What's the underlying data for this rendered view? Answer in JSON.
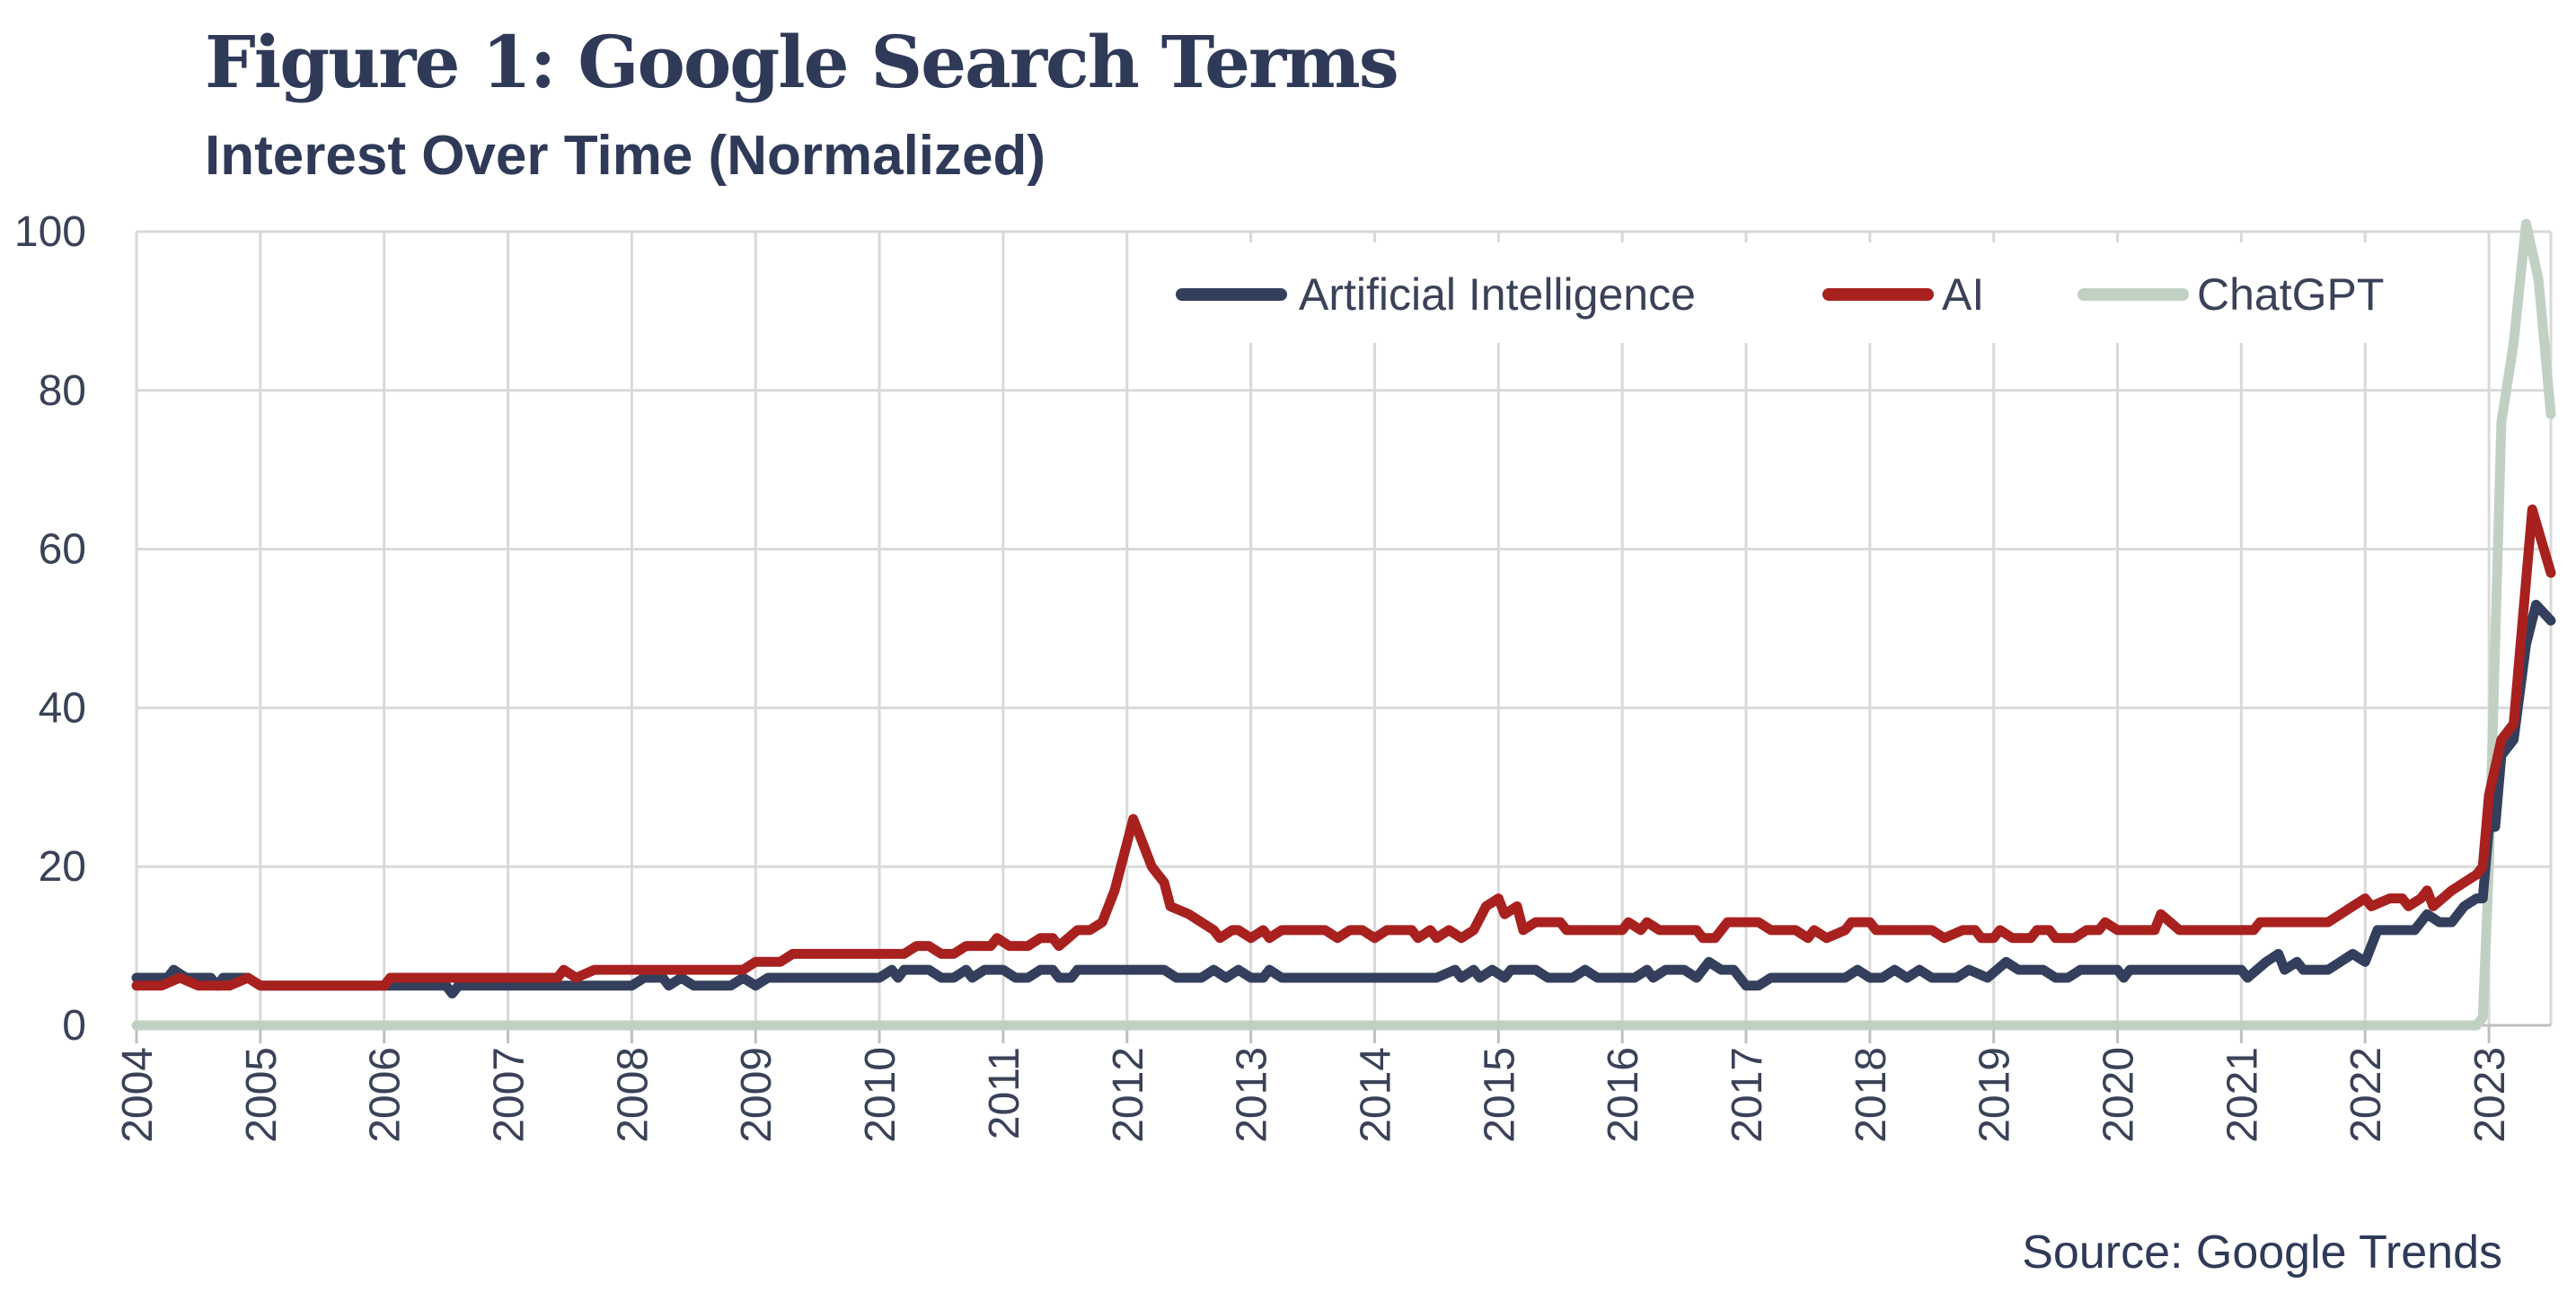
{
  "title": "Figure 1: Google Search Terms",
  "subtitle": "Interest Over Time (Normalized)",
  "source": "Source: Google Trends",
  "chart_data": {
    "type": "line",
    "title": "Figure 1: Google Search Terms",
    "subtitle": "Interest Over Time (Normalized)",
    "xlabel": "",
    "ylabel": "",
    "xlim": [
      2004,
      2023.5
    ],
    "ylim": [
      0,
      100
    ],
    "grid": true,
    "legend_position": "top-right",
    "x_ticks": [
      "2004",
      "2005",
      "2006",
      "2007",
      "2008",
      "2009",
      "2010",
      "2011",
      "2012",
      "2013",
      "2014",
      "2015",
      "2016",
      "2017",
      "2018",
      "2019",
      "2020",
      "2021",
      "2022",
      "2023"
    ],
    "y_ticks": [
      0,
      20,
      40,
      60,
      80,
      100
    ],
    "series": [
      {
        "name": "Artificial Intelligence",
        "color": "#333f5c",
        "points": [
          [
            2004,
            6
          ],
          [
            2004.25,
            6
          ],
          [
            2004.3,
            7
          ],
          [
            2004.4,
            6
          ],
          [
            2004.6,
            6
          ],
          [
            2004.65,
            5
          ],
          [
            2004.7,
            6
          ],
          [
            2004.9,
            6
          ],
          [
            2005,
            5
          ],
          [
            2005.5,
            5
          ],
          [
            2006,
            5
          ],
          [
            2006.5,
            5
          ],
          [
            2006.55,
            4
          ],
          [
            2006.6,
            5
          ],
          [
            2007,
            5
          ],
          [
            2007.5,
            5
          ],
          [
            2008,
            5
          ],
          [
            2008.1,
            6
          ],
          [
            2008.25,
            6
          ],
          [
            2008.3,
            5
          ],
          [
            2008.4,
            6
          ],
          [
            2008.5,
            5
          ],
          [
            2008.8,
            5
          ],
          [
            2008.9,
            6
          ],
          [
            2009,
            5
          ],
          [
            2009.1,
            6
          ],
          [
            2009.5,
            6
          ],
          [
            2010,
            6
          ],
          [
            2010.1,
            7
          ],
          [
            2010.15,
            6
          ],
          [
            2010.2,
            7
          ],
          [
            2010.4,
            7
          ],
          [
            2010.5,
            6
          ],
          [
            2010.6,
            6
          ],
          [
            2010.7,
            7
          ],
          [
            2010.75,
            6
          ],
          [
            2010.85,
            7
          ],
          [
            2011,
            7
          ],
          [
            2011.1,
            6
          ],
          [
            2011.2,
            6
          ],
          [
            2011.3,
            7
          ],
          [
            2011.4,
            7
          ],
          [
            2011.45,
            6
          ],
          [
            2011.55,
            6
          ],
          [
            2011.6,
            7
          ],
          [
            2011.8,
            7
          ],
          [
            2012,
            7
          ],
          [
            2012.3,
            7
          ],
          [
            2012.4,
            6
          ],
          [
            2012.6,
            6
          ],
          [
            2012.7,
            7
          ],
          [
            2012.8,
            6
          ],
          [
            2012.9,
            7
          ],
          [
            2013,
            6
          ],
          [
            2013.1,
            6
          ],
          [
            2013.15,
            7
          ],
          [
            2013.25,
            6
          ],
          [
            2013.5,
            6
          ],
          [
            2014,
            6
          ],
          [
            2014.5,
            6
          ],
          [
            2014.65,
            7
          ],
          [
            2014.7,
            6
          ],
          [
            2014.8,
            7
          ],
          [
            2014.85,
            6
          ],
          [
            2014.95,
            7
          ],
          [
            2015.05,
            6
          ],
          [
            2015.1,
            7
          ],
          [
            2015.3,
            7
          ],
          [
            2015.4,
            6
          ],
          [
            2015.6,
            6
          ],
          [
            2015.7,
            7
          ],
          [
            2015.8,
            6
          ],
          [
            2016,
            6
          ],
          [
            2016.1,
            6
          ],
          [
            2016.2,
            7
          ],
          [
            2016.25,
            6
          ],
          [
            2016.35,
            7
          ],
          [
            2016.5,
            7
          ],
          [
            2016.6,
            6
          ],
          [
            2016.7,
            8
          ],
          [
            2016.8,
            7
          ],
          [
            2016.9,
            7
          ],
          [
            2017,
            5
          ],
          [
            2017.1,
            5
          ],
          [
            2017.2,
            6
          ],
          [
            2017.5,
            6
          ],
          [
            2017.8,
            6
          ],
          [
            2017.9,
            7
          ],
          [
            2018,
            6
          ],
          [
            2018.1,
            6
          ],
          [
            2018.2,
            7
          ],
          [
            2018.3,
            6
          ],
          [
            2018.4,
            7
          ],
          [
            2018.5,
            6
          ],
          [
            2018.7,
            6
          ],
          [
            2018.8,
            7
          ],
          [
            2018.95,
            6
          ],
          [
            2019.1,
            8
          ],
          [
            2019.2,
            7
          ],
          [
            2019.4,
            7
          ],
          [
            2019.5,
            6
          ],
          [
            2019.6,
            6
          ],
          [
            2019.7,
            7
          ],
          [
            2019.8,
            7
          ],
          [
            2020,
            7
          ],
          [
            2020.05,
            6
          ],
          [
            2020.1,
            7
          ],
          [
            2020.5,
            7
          ],
          [
            2021,
            7
          ],
          [
            2021.05,
            6
          ],
          [
            2021.2,
            8
          ],
          [
            2021.3,
            9
          ],
          [
            2021.35,
            7
          ],
          [
            2021.45,
            8
          ],
          [
            2021.5,
            7
          ],
          [
            2021.7,
            7
          ],
          [
            2021.8,
            8
          ],
          [
            2021.9,
            9
          ],
          [
            2022,
            8
          ],
          [
            2022.1,
            12
          ],
          [
            2022.3,
            12
          ],
          [
            2022.4,
            12
          ],
          [
            2022.5,
            14
          ],
          [
            2022.6,
            13
          ],
          [
            2022.7,
            13
          ],
          [
            2022.8,
            15
          ],
          [
            2022.9,
            16
          ],
          [
            2022.95,
            16
          ],
          [
            2023,
            25
          ],
          [
            2023.05,
            25
          ],
          [
            2023.1,
            34
          ],
          [
            2023.2,
            36
          ],
          [
            2023.3,
            48
          ],
          [
            2023.38,
            53
          ],
          [
            2023.5,
            51
          ]
        ]
      },
      {
        "name": "AI",
        "color": "#a8211f",
        "points": [
          [
            2004,
            5
          ],
          [
            2004.2,
            5
          ],
          [
            2004.35,
            6
          ],
          [
            2004.5,
            5
          ],
          [
            2004.75,
            5
          ],
          [
            2004.9,
            6
          ],
          [
            2005,
            5
          ],
          [
            2005.5,
            5
          ],
          [
            2006,
            5
          ],
          [
            2006.05,
            6
          ],
          [
            2006.5,
            6
          ],
          [
            2007,
            6
          ],
          [
            2007.3,
            6
          ],
          [
            2007.4,
            6
          ],
          [
            2007.45,
            7
          ],
          [
            2007.55,
            6
          ],
          [
            2007.7,
            7
          ],
          [
            2008,
            7
          ],
          [
            2008.5,
            7
          ],
          [
            2008.9,
            7
          ],
          [
            2009,
            8
          ],
          [
            2009.2,
            8
          ],
          [
            2009.3,
            9
          ],
          [
            2009.7,
            9
          ],
          [
            2010,
            9
          ],
          [
            2010.2,
            9
          ],
          [
            2010.3,
            10
          ],
          [
            2010.4,
            10
          ],
          [
            2010.5,
            9
          ],
          [
            2010.6,
            9
          ],
          [
            2010.7,
            10
          ],
          [
            2010.9,
            10
          ],
          [
            2010.95,
            11
          ],
          [
            2011.05,
            10
          ],
          [
            2011.2,
            10
          ],
          [
            2011.3,
            11
          ],
          [
            2011.4,
            11
          ],
          [
            2011.45,
            10
          ],
          [
            2011.6,
            12
          ],
          [
            2011.7,
            12
          ],
          [
            2011.8,
            13
          ],
          [
            2011.9,
            17
          ],
          [
            2012,
            23
          ],
          [
            2012.05,
            26
          ],
          [
            2012.1,
            24
          ],
          [
            2012.2,
            20
          ],
          [
            2012.3,
            18
          ],
          [
            2012.35,
            15
          ],
          [
            2012.5,
            14
          ],
          [
            2012.6,
            13
          ],
          [
            2012.7,
            12
          ],
          [
            2012.75,
            11
          ],
          [
            2012.85,
            12
          ],
          [
            2012.9,
            12
          ],
          [
            2013,
            11
          ],
          [
            2013.1,
            12
          ],
          [
            2013.15,
            11
          ],
          [
            2013.25,
            12
          ],
          [
            2013.6,
            12
          ],
          [
            2013.7,
            11
          ],
          [
            2013.8,
            12
          ],
          [
            2013.9,
            12
          ],
          [
            2014,
            11
          ],
          [
            2014.1,
            12
          ],
          [
            2014.3,
            12
          ],
          [
            2014.35,
            11
          ],
          [
            2014.45,
            12
          ],
          [
            2014.5,
            11
          ],
          [
            2014.6,
            12
          ],
          [
            2014.7,
            11
          ],
          [
            2014.8,
            12
          ],
          [
            2014.9,
            15
          ],
          [
            2015,
            16
          ],
          [
            2015.05,
            14
          ],
          [
            2015.15,
            15
          ],
          [
            2015.2,
            12
          ],
          [
            2015.3,
            13
          ],
          [
            2015.5,
            13
          ],
          [
            2015.55,
            12
          ],
          [
            2016,
            12
          ],
          [
            2016.05,
            13
          ],
          [
            2016.15,
            12
          ],
          [
            2016.2,
            13
          ],
          [
            2016.3,
            12
          ],
          [
            2016.6,
            12
          ],
          [
            2016.65,
            11
          ],
          [
            2016.75,
            11
          ],
          [
            2016.85,
            13
          ],
          [
            2017,
            13
          ],
          [
            2017.1,
            13
          ],
          [
            2017.2,
            12
          ],
          [
            2017.4,
            12
          ],
          [
            2017.5,
            11
          ],
          [
            2017.55,
            12
          ],
          [
            2017.65,
            11
          ],
          [
            2017.8,
            12
          ],
          [
            2017.85,
            13
          ],
          [
            2018,
            13
          ],
          [
            2018.05,
            12
          ],
          [
            2018.5,
            12
          ],
          [
            2018.6,
            11
          ],
          [
            2018.75,
            12
          ],
          [
            2018.85,
            12
          ],
          [
            2018.9,
            11
          ],
          [
            2019,
            11
          ],
          [
            2019.05,
            12
          ],
          [
            2019.15,
            11
          ],
          [
            2019.3,
            11
          ],
          [
            2019.35,
            12
          ],
          [
            2019.45,
            12
          ],
          [
            2019.5,
            11
          ],
          [
            2019.65,
            11
          ],
          [
            2019.75,
            12
          ],
          [
            2019.85,
            12
          ],
          [
            2019.9,
            13
          ],
          [
            2020,
            12
          ],
          [
            2020.3,
            12
          ],
          [
            2020.35,
            14
          ],
          [
            2020.5,
            12
          ],
          [
            2021,
            12
          ],
          [
            2021.1,
            12
          ],
          [
            2021.15,
            13
          ],
          [
            2021.5,
            13
          ],
          [
            2021.7,
            13
          ],
          [
            2021.8,
            14
          ],
          [
            2021.9,
            15
          ],
          [
            2022,
            16
          ],
          [
            2022.05,
            15
          ],
          [
            2022.2,
            16
          ],
          [
            2022.3,
            16
          ],
          [
            2022.35,
            15
          ],
          [
            2022.45,
            16
          ],
          [
            2022.5,
            17
          ],
          [
            2022.55,
            15
          ],
          [
            2022.7,
            17
          ],
          [
            2022.9,
            19
          ],
          [
            2022.95,
            20
          ],
          [
            2023,
            29
          ],
          [
            2023.1,
            36
          ],
          [
            2023.2,
            38
          ],
          [
            2023.35,
            65
          ],
          [
            2023.5,
            57
          ]
        ]
      },
      {
        "name": "ChatGPT",
        "color": "#c0d1c4",
        "points": [
          [
            2004,
            0
          ],
          [
            2022.9,
            0
          ],
          [
            2022.95,
            1
          ],
          [
            2023,
            20
          ],
          [
            2023.1,
            76
          ],
          [
            2023.2,
            86
          ],
          [
            2023.3,
            101
          ],
          [
            2023.4,
            94
          ],
          [
            2023.5,
            77
          ]
        ]
      }
    ]
  }
}
